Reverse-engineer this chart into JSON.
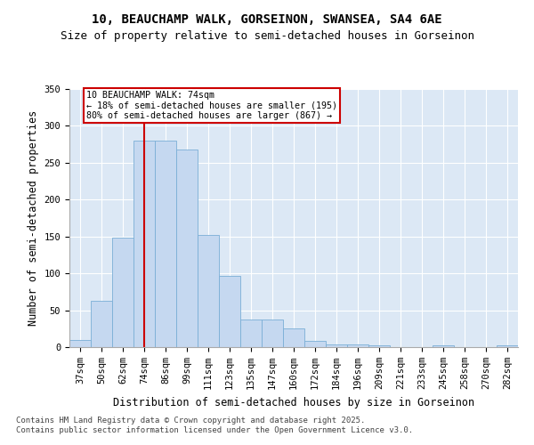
{
  "title1": "10, BEAUCHAMP WALK, GORSEINON, SWANSEA, SA4 6AE",
  "title2": "Size of property relative to semi-detached houses in Gorseinon",
  "xlabel": "Distribution of semi-detached houses by size in Gorseinon",
  "ylabel": "Number of semi-detached properties",
  "categories": [
    "37sqm",
    "50sqm",
    "62sqm",
    "74sqm",
    "86sqm",
    "99sqm",
    "111sqm",
    "123sqm",
    "135sqm",
    "147sqm",
    "160sqm",
    "172sqm",
    "184sqm",
    "196sqm",
    "209sqm",
    "221sqm",
    "233sqm",
    "245sqm",
    "258sqm",
    "270sqm",
    "282sqm"
  ],
  "values": [
    10,
    63,
    148,
    280,
    280,
    268,
    152,
    97,
    37,
    37,
    25,
    9,
    4,
    4,
    2,
    0,
    0,
    2,
    0,
    0,
    2
  ],
  "bar_color": "#c5d8f0",
  "bar_edge_color": "#7aaed6",
  "vline_x": 3,
  "vline_color": "#cc0000",
  "annotation_title": "10 BEAUCHAMP WALK: 74sqm",
  "annotation_line1": "← 18% of semi-detached houses are smaller (195)",
  "annotation_line2": "80% of semi-detached houses are larger (867) →",
  "annotation_box_color": "#cc0000",
  "ylim": [
    0,
    350
  ],
  "yticks": [
    0,
    50,
    100,
    150,
    200,
    250,
    300,
    350
  ],
  "bg_color": "#dce8f5",
  "footer1": "Contains HM Land Registry data © Crown copyright and database right 2025.",
  "footer2": "Contains public sector information licensed under the Open Government Licence v3.0.",
  "title1_fontsize": 10,
  "title2_fontsize": 9,
  "axis_label_fontsize": 8.5,
  "tick_fontsize": 7.5,
  "footer_fontsize": 6.5
}
